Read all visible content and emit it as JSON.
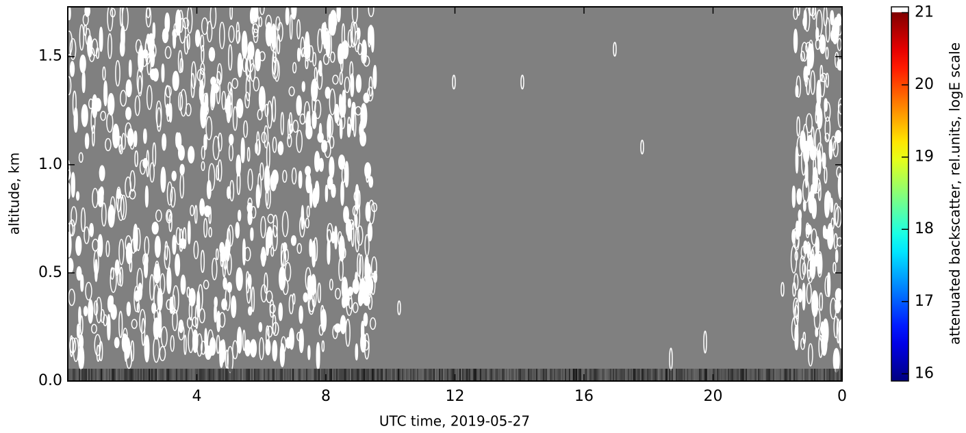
{
  "chart_data": {
    "type": "heatmap",
    "x_label": "UTC time,  2019-05-27",
    "y_label": "altitude, km",
    "xlim": [
      0,
      24
    ],
    "xticks": [
      4,
      8,
      12,
      16,
      20,
      {
        "value": 24,
        "label": "0"
      }
    ],
    "ylim": [
      0,
      1.73
    ],
    "yticks": [
      {
        "value": 0,
        "label": "0.0"
      },
      0.5,
      {
        "value": 1,
        "label": "1.0"
      },
      1.5
    ],
    "background_color": "#808080",
    "colorbar": {
      "label": "attenuated backscatter, rel.units, logE scale",
      "colormap": "jet",
      "lim": [
        15.9,
        21.08
      ],
      "ticks": [
        16,
        17,
        18,
        19,
        20,
        21
      ]
    }
  }
}
